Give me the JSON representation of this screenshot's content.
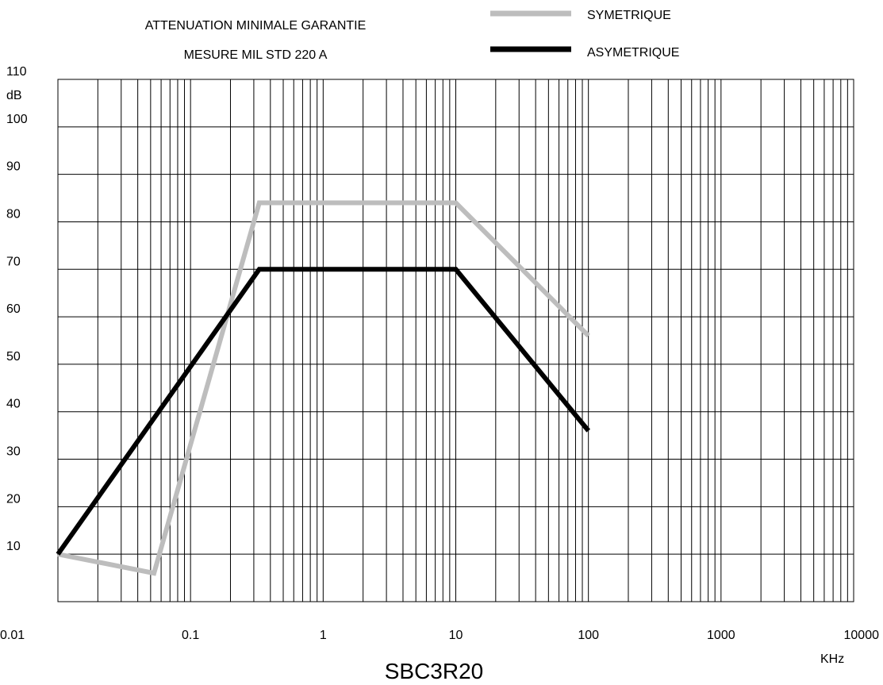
{
  "chart_data": {
    "type": "line",
    "title_lines": [
      "ATTENUATION MINIMALE GARANTIE",
      "MESURE MIL STD 220 A"
    ],
    "xlabel": "KHz",
    "ylabel": "dB",
    "caption": "SBC3R20",
    "x_scale": "log",
    "xlim": [
      0.01,
      10000
    ],
    "ylim": [
      0,
      110
    ],
    "x_ticks": [
      0.01,
      0.1,
      1,
      10,
      100,
      1000,
      10000
    ],
    "x_tick_labels": [
      "0.01",
      "0.1",
      "1",
      "10",
      "100",
      "1000",
      "10000"
    ],
    "y_ticks": [
      10,
      20,
      30,
      40,
      50,
      60,
      70,
      80,
      90,
      100,
      110
    ],
    "y_tick_labels": [
      "10",
      "20",
      "30",
      "40",
      "50",
      "60",
      "70",
      "80",
      "90",
      "100",
      "110"
    ],
    "grid": true,
    "legend_position": "top-right",
    "series": [
      {
        "name": "SYMETRIQUE",
        "color": "#bdbdbd",
        "points": [
          [
            0.01,
            10
          ],
          [
            0.053,
            6
          ],
          [
            0.33,
            84
          ],
          [
            10,
            84
          ],
          [
            100,
            56
          ]
        ]
      },
      {
        "name": "ASYMETRIQUE",
        "color": "#000000",
        "points": [
          [
            0.01,
            10
          ],
          [
            0.33,
            70
          ],
          [
            10,
            70
          ],
          [
            100,
            36
          ]
        ]
      }
    ]
  }
}
